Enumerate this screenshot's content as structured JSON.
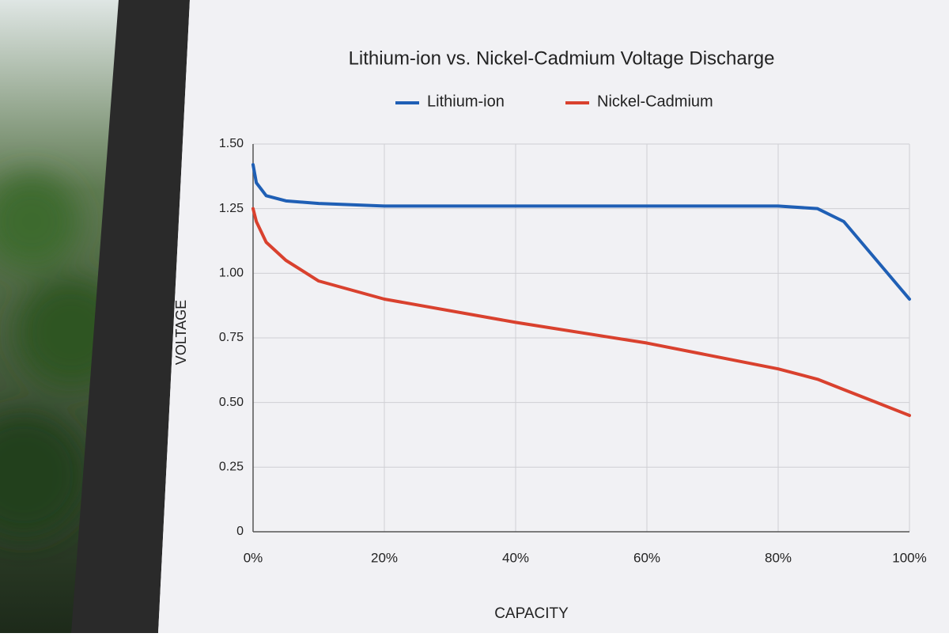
{
  "chart_data": {
    "type": "line",
    "title": "Lithium-ion vs. Nickel-Cadmium Voltage Discharge",
    "x_label": "CAPACITY",
    "y_label": "VOLTAGE",
    "x": [
      0,
      0.5,
      2,
      5,
      10,
      20,
      40,
      60,
      80,
      86,
      90,
      95,
      100
    ],
    "series": [
      {
        "name": "Lithium-ion",
        "color": "#1f5fb5",
        "values": [
          1.42,
          1.35,
          1.3,
          1.28,
          1.27,
          1.26,
          1.26,
          1.26,
          1.26,
          1.25,
          1.2,
          1.05,
          0.9
        ]
      },
      {
        "name": "Nickel-Cadmium",
        "color": "#d9412e",
        "values": [
          1.25,
          1.2,
          1.12,
          1.05,
          0.97,
          0.9,
          0.81,
          0.73,
          0.63,
          0.59,
          0.55,
          0.5,
          0.45
        ]
      }
    ],
    "xlim": [
      0,
      100
    ],
    "xticks": [
      {
        "value": 0,
        "label": "0%"
      },
      {
        "value": 20,
        "label": "20%"
      },
      {
        "value": 40,
        "label": "40%"
      },
      {
        "value": 60,
        "label": "60%"
      },
      {
        "value": 80,
        "label": "80%"
      },
      {
        "value": 100,
        "label": "100%"
      }
    ],
    "ylim": [
      0,
      1.5
    ],
    "yticks": [
      0,
      {
        "value": 0.25,
        "label": "0.25"
      },
      {
        "value": 0.5,
        "label": "0.50"
      },
      {
        "value": 0.75,
        "label": "0.75"
      },
      {
        "value": 1,
        "label": "1.00"
      },
      {
        "value": 1.25,
        "label": "1.25"
      },
      {
        "value": 1.5,
        "label": "1.50"
      }
    ],
    "grid": true
  }
}
